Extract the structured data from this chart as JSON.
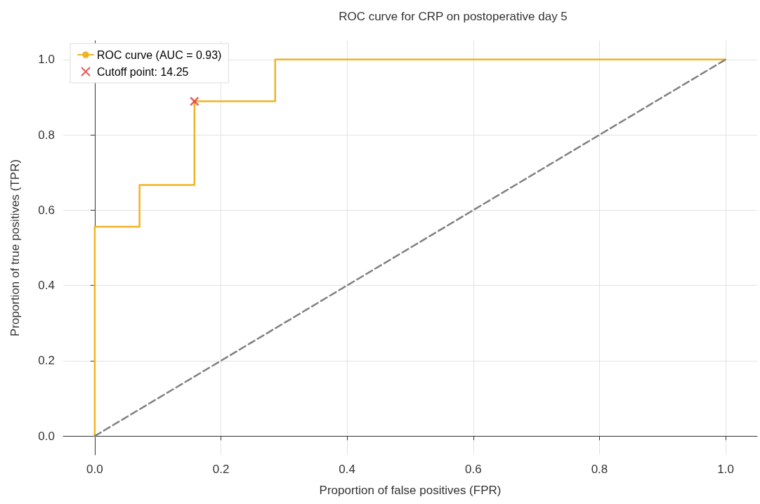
{
  "chart_data": {
    "type": "line",
    "title": "ROC curve for CRP on postoperative day 5",
    "xlabel": "Proportion of false positives (FPR)",
    "ylabel": "Proportion of true positives (TPR)",
    "series": [
      {
        "name": "ROC curve (AUC = 0.93)",
        "type": "step",
        "color": "#f0b323",
        "x": [
          0,
          0,
          0.071,
          0.071,
          0.158,
          0.158,
          0.286,
          0.286,
          1
        ],
        "values": [
          0,
          0.556,
          0.556,
          0.667,
          0.667,
          0.889,
          0.889,
          1,
          1
        ]
      },
      {
        "color": "#808080",
        "line_style": "dashed",
        "marker": "none",
        "x": [
          0,
          1
        ],
        "values": [
          0,
          1
        ]
      },
      {
        "name": "Cutoff point: 14.25",
        "type": "scatter",
        "color": "#e03030",
        "marker": "cross",
        "x": [
          0.158
        ],
        "values": [
          0.889
        ]
      }
    ],
    "xlim": [
      -0.05,
      1.05
    ],
    "ylim": [
      -0.05,
      1.05
    ],
    "xticks": [
      {
        "value": 0,
        "label": "0.0"
      },
      {
        "value": 0.2,
        "label": "0.2"
      },
      {
        "value": 0.4,
        "label": "0.4"
      },
      {
        "value": 0.6,
        "label": "0.6"
      },
      {
        "value": 0.8,
        "label": "0.8"
      },
      {
        "value": 1,
        "label": "1.0"
      }
    ],
    "yticks": [
      {
        "value": 0,
        "label": "0.0"
      },
      {
        "value": 0.2,
        "label": "0.2"
      },
      {
        "value": 0.4,
        "label": "0.4"
      },
      {
        "value": 0.6,
        "label": "0.6"
      },
      {
        "value": 0.8,
        "label": "0.8"
      },
      {
        "value": 1,
        "label": "1.0"
      }
    ],
    "grid": true,
    "legend": "top left"
  }
}
